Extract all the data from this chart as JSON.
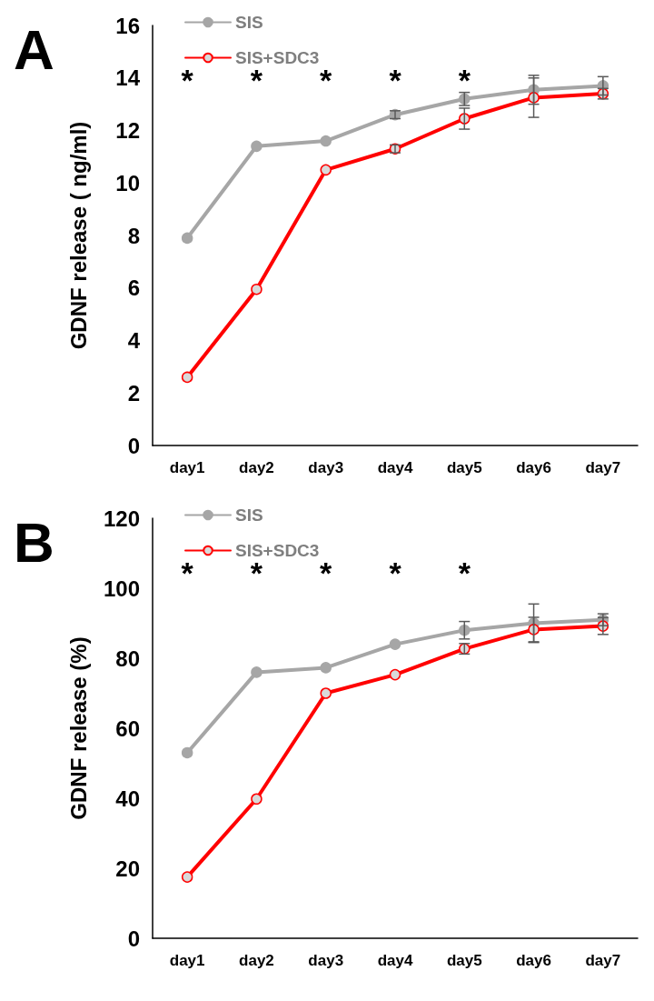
{
  "chart_data": [
    {
      "type": "line",
      "title": "A",
      "ylabel": "GDNF release ( ng/ml)",
      "categories": [
        "day1",
        "day2",
        "day3",
        "day4",
        "day5",
        "day6",
        "day7"
      ],
      "series": [
        {
          "name": "SIS",
          "color": "#a6a6a6",
          "values": [
            7.9,
            11.4,
            11.6,
            12.6,
            13.2,
            13.55,
            13.7
          ],
          "errors": [
            null,
            null,
            null,
            0.15,
            0.25,
            0.55,
            0.35
          ]
        },
        {
          "name": "SIS+SDC3",
          "color": "#ff0000",
          "values": [
            2.6,
            5.95,
            10.5,
            11.3,
            12.45,
            13.25,
            13.4
          ],
          "errors": [
            null,
            null,
            null,
            0.15,
            0.4,
            0.75,
            0.2
          ]
        }
      ],
      "ylim": [
        0,
        16
      ],
      "yticks": [
        0,
        2,
        4,
        6,
        8,
        10,
        12,
        14,
        16
      ],
      "grid": false,
      "legend": "top left",
      "marker": "circle",
      "line_style": "solid",
      "annotations": [
        "*",
        "*",
        "*",
        "*",
        "*"
      ]
    },
    {
      "type": "line",
      "title": "B",
      "ylabel": "GDNF release (%)",
      "categories": [
        "day1",
        "day2",
        "day3",
        "day4",
        "day5",
        "day6",
        "day7"
      ],
      "series": [
        {
          "name": "SIS",
          "color": "#a6a6a6",
          "values": [
            53,
            76,
            77.3,
            84,
            88,
            90,
            91
          ],
          "errors": [
            null,
            null,
            null,
            null,
            2.5,
            5.5,
            1.7
          ]
        },
        {
          "name": "SIS+SDC3",
          "color": "#ff0000",
          "values": [
            17.5,
            39.8,
            70,
            75.3,
            82.7,
            88.2,
            89.2
          ],
          "errors": [
            null,
            null,
            null,
            null,
            1.5,
            3.5,
            2.4
          ]
        }
      ],
      "ylim": [
        0,
        120
      ],
      "yticks": [
        0,
        20,
        40,
        60,
        80,
        100,
        120
      ],
      "grid": false,
      "legend": "top left",
      "marker": "circle",
      "line_style": "solid",
      "annotations": [
        "*",
        "*",
        "*",
        "*",
        "*"
      ]
    }
  ]
}
